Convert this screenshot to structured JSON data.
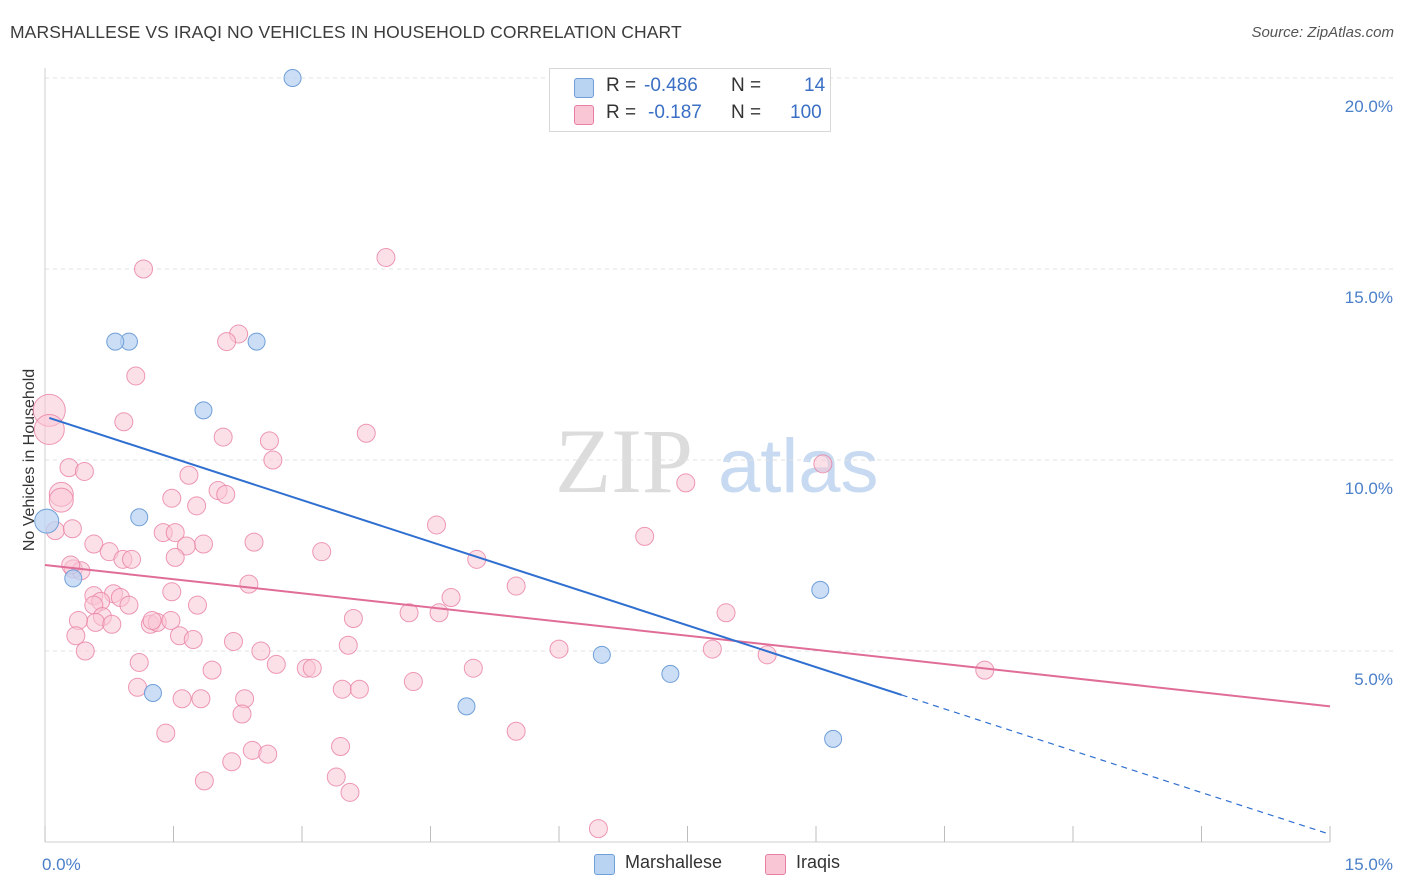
{
  "header": {
    "title": "MARSHALLESE VS IRAQI NO VEHICLES IN HOUSEHOLD CORRELATION CHART",
    "source": "Source: ZipAtlas.com"
  },
  "colors": {
    "marshallese_fill": "#b9d3f3",
    "marshallese_stroke": "#6f9fd8",
    "marshallese_line": "#2f6fd0",
    "iraqi_fill": "#f9c6d5",
    "iraqi_stroke": "#e87fa3",
    "iraqi_line": "#e06d97",
    "tick_text": "#4a7fc9",
    "grid": "#e2e2e2"
  },
  "legend": {
    "rows": [
      {
        "label": "R =",
        "r": "-0.486",
        "n_label": "N =",
        "n": "14"
      },
      {
        "label": "R =",
        "r": "-0.187",
        "n_label": "N =",
        "n": "100"
      }
    ]
  },
  "bottom_legend": [
    {
      "label": "Marshallese"
    },
    {
      "label": "Iraqis"
    }
  ],
  "watermark": {
    "zip": "ZIP",
    "atlas": "atlas"
  },
  "chart_data": {
    "type": "scatter",
    "title": "MARSHALLESE VS IRAQI NO VEHICLES IN HOUSEHOLD CORRELATION CHART",
    "xlabel": "",
    "ylabel": "No Vehicles in Household",
    "xlim": [
      0,
      15
    ],
    "ylim": [
      0,
      20
    ],
    "x_tick_labels": [
      "0.0%",
      "15.0%"
    ],
    "y_ticks": [
      5,
      10,
      15,
      20
    ],
    "y_tick_labels": [
      "5.0%",
      "10.0%",
      "15.0%",
      "20.0%"
    ],
    "grid": "horizontal dashed",
    "legend_position": "top-center",
    "series": [
      {
        "name": "Marshallese",
        "r": -0.486,
        "n": 14,
        "trend": {
          "x0": 0.05,
          "y0": 11.1,
          "x1": 10.0,
          "y1": 3.85,
          "dashed_to_x": 15.0,
          "dashed_to_y": 0.2
        },
        "points": [
          [
            2.89,
            20.0
          ],
          [
            0.98,
            13.1
          ],
          [
            0.82,
            13.1
          ],
          [
            2.47,
            13.1
          ],
          [
            1.85,
            11.3
          ],
          [
            1.1,
            8.5
          ],
          [
            0.02,
            8.4
          ],
          [
            0.33,
            6.9
          ],
          [
            9.05,
            6.6
          ],
          [
            6.5,
            4.9
          ],
          [
            7.3,
            4.4
          ],
          [
            1.26,
            3.9
          ],
          [
            4.92,
            3.55
          ],
          [
            9.2,
            2.7
          ]
        ]
      },
      {
        "name": "Iraqis",
        "r": -0.187,
        "n": 100,
        "trend": {
          "x0": 0.0,
          "y0": 7.25,
          "x1": 15.0,
          "y1": 3.55
        },
        "points": [
          [
            1.15,
            15.0
          ],
          [
            3.98,
            15.3
          ],
          [
            2.26,
            13.3
          ],
          [
            2.12,
            13.1
          ],
          [
            1.06,
            12.2
          ],
          [
            0.92,
            11.0
          ],
          [
            0.05,
            11.3
          ],
          [
            0.05,
            10.8
          ],
          [
            2.08,
            10.6
          ],
          [
            3.75,
            10.7
          ],
          [
            2.62,
            10.5
          ],
          [
            2.66,
            10.0
          ],
          [
            0.28,
            9.8
          ],
          [
            0.46,
            9.7
          ],
          [
            9.08,
            9.9
          ],
          [
            7.48,
            9.4
          ],
          [
            1.68,
            9.6
          ],
          [
            0.19,
            9.1
          ],
          [
            0.19,
            8.95
          ],
          [
            2.02,
            9.2
          ],
          [
            2.11,
            9.1
          ],
          [
            1.48,
            9.0
          ],
          [
            1.77,
            8.8
          ],
          [
            4.57,
            8.3
          ],
          [
            0.12,
            8.15
          ],
          [
            0.32,
            8.2
          ],
          [
            1.38,
            8.1
          ],
          [
            1.52,
            8.1
          ],
          [
            7.0,
            8.0
          ],
          [
            0.57,
            7.8
          ],
          [
            1.85,
            7.8
          ],
          [
            2.44,
            7.85
          ],
          [
            1.65,
            7.75
          ],
          [
            0.75,
            7.6
          ],
          [
            3.23,
            7.6
          ],
          [
            0.91,
            7.4
          ],
          [
            1.01,
            7.4
          ],
          [
            1.52,
            7.45
          ],
          [
            5.04,
            7.4
          ],
          [
            0.33,
            7.15
          ],
          [
            0.42,
            7.1
          ],
          [
            2.38,
            6.75
          ],
          [
            5.5,
            6.7
          ],
          [
            0.8,
            6.5
          ],
          [
            0.88,
            6.4
          ],
          [
            1.48,
            6.55
          ],
          [
            0.57,
            6.45
          ],
          [
            0.65,
            6.3
          ],
          [
            4.74,
            6.4
          ],
          [
            1.78,
            6.2
          ],
          [
            0.57,
            6.2
          ],
          [
            0.98,
            6.2
          ],
          [
            4.25,
            6.0
          ],
          [
            4.6,
            6.0
          ],
          [
            7.95,
            6.0
          ],
          [
            0.67,
            5.9
          ],
          [
            0.59,
            5.75
          ],
          [
            0.78,
            5.7
          ],
          [
            1.23,
            5.7
          ],
          [
            1.31,
            5.75
          ],
          [
            1.25,
            5.8
          ],
          [
            3.6,
            5.85
          ],
          [
            0.39,
            5.8
          ],
          [
            1.47,
            5.8
          ],
          [
            0.36,
            5.4
          ],
          [
            1.57,
            5.4
          ],
          [
            1.73,
            5.3
          ],
          [
            2.2,
            5.25
          ],
          [
            3.54,
            5.15
          ],
          [
            0.47,
            5.0
          ],
          [
            2.52,
            5.0
          ],
          [
            6.0,
            5.05
          ],
          [
            7.79,
            5.05
          ],
          [
            8.43,
            4.9
          ],
          [
            1.1,
            4.7
          ],
          [
            2.7,
            4.65
          ],
          [
            3.05,
            4.55
          ],
          [
            3.12,
            4.55
          ],
          [
            5.0,
            4.55
          ],
          [
            1.95,
            4.5
          ],
          [
            10.97,
            4.5
          ],
          [
            4.3,
            4.2
          ],
          [
            1.08,
            4.05
          ],
          [
            3.47,
            4.0
          ],
          [
            3.67,
            4.0
          ],
          [
            1.6,
            3.75
          ],
          [
            1.82,
            3.75
          ],
          [
            2.33,
            3.75
          ],
          [
            2.3,
            3.35
          ],
          [
            5.5,
            2.9
          ],
          [
            1.41,
            2.85
          ],
          [
            3.45,
            2.5
          ],
          [
            2.42,
            2.4
          ],
          [
            2.6,
            2.3
          ],
          [
            2.18,
            2.1
          ],
          [
            3.4,
            1.7
          ],
          [
            1.86,
            1.6
          ],
          [
            3.56,
            1.3
          ],
          [
            6.46,
            0.35
          ],
          [
            0.3,
            7.25
          ]
        ]
      }
    ]
  }
}
